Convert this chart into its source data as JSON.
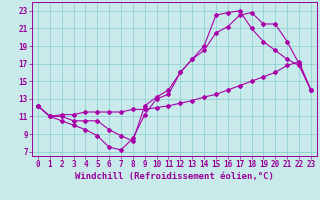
{
  "xlabel": "Windchill (Refroidissement éolien,°C)",
  "bg_color": "#c8eaea",
  "line_color": "#aa00aa",
  "xlim": [
    -0.5,
    23.5
  ],
  "ylim": [
    6.5,
    24.0
  ],
  "xticks": [
    0,
    1,
    2,
    3,
    4,
    5,
    6,
    7,
    8,
    9,
    10,
    11,
    12,
    13,
    14,
    15,
    16,
    17,
    18,
    19,
    20,
    21,
    22,
    23
  ],
  "yticks": [
    7,
    9,
    11,
    13,
    15,
    17,
    19,
    21,
    23
  ],
  "line1_x": [
    0,
    1,
    2,
    3,
    4,
    5,
    6,
    7,
    8,
    9,
    10,
    11,
    12,
    13,
    14,
    15,
    16,
    17,
    18,
    19,
    20,
    21,
    22,
    23
  ],
  "line1_y": [
    12.2,
    11.0,
    11.0,
    10.5,
    10.5,
    10.5,
    9.5,
    8.8,
    8.2,
    12.2,
    13.2,
    14.0,
    16.0,
    17.5,
    18.5,
    20.5,
    21.2,
    22.5,
    22.8,
    21.5,
    21.5,
    19.5,
    17.0,
    14.0
  ],
  "line2_x": [
    0,
    1,
    2,
    3,
    4,
    5,
    6,
    7,
    8,
    9,
    10,
    11,
    12,
    13,
    14,
    15,
    16,
    17,
    18,
    19,
    20,
    21,
    22,
    23
  ],
  "line2_y": [
    12.2,
    11.0,
    10.5,
    10.0,
    9.5,
    8.8,
    7.5,
    7.2,
    8.5,
    11.2,
    13.0,
    13.5,
    16.0,
    17.5,
    19.0,
    22.5,
    22.8,
    23.0,
    21.0,
    19.5,
    18.5,
    17.5,
    16.8,
    14.0
  ],
  "line3_x": [
    0,
    1,
    2,
    3,
    4,
    5,
    6,
    7,
    8,
    9,
    10,
    11,
    12,
    13,
    14,
    15,
    16,
    17,
    18,
    19,
    20,
    21,
    22,
    23
  ],
  "line3_y": [
    12.2,
    11.0,
    11.2,
    11.2,
    11.5,
    11.5,
    11.5,
    11.5,
    11.8,
    11.8,
    12.0,
    12.2,
    12.5,
    12.8,
    13.2,
    13.5,
    14.0,
    14.5,
    15.0,
    15.5,
    16.0,
    16.8,
    17.2,
    14.0
  ],
  "grid_color": "#88cccc",
  "font_color": "#990099",
  "tick_fontsize": 5.5,
  "xlabel_fontsize": 6.5
}
